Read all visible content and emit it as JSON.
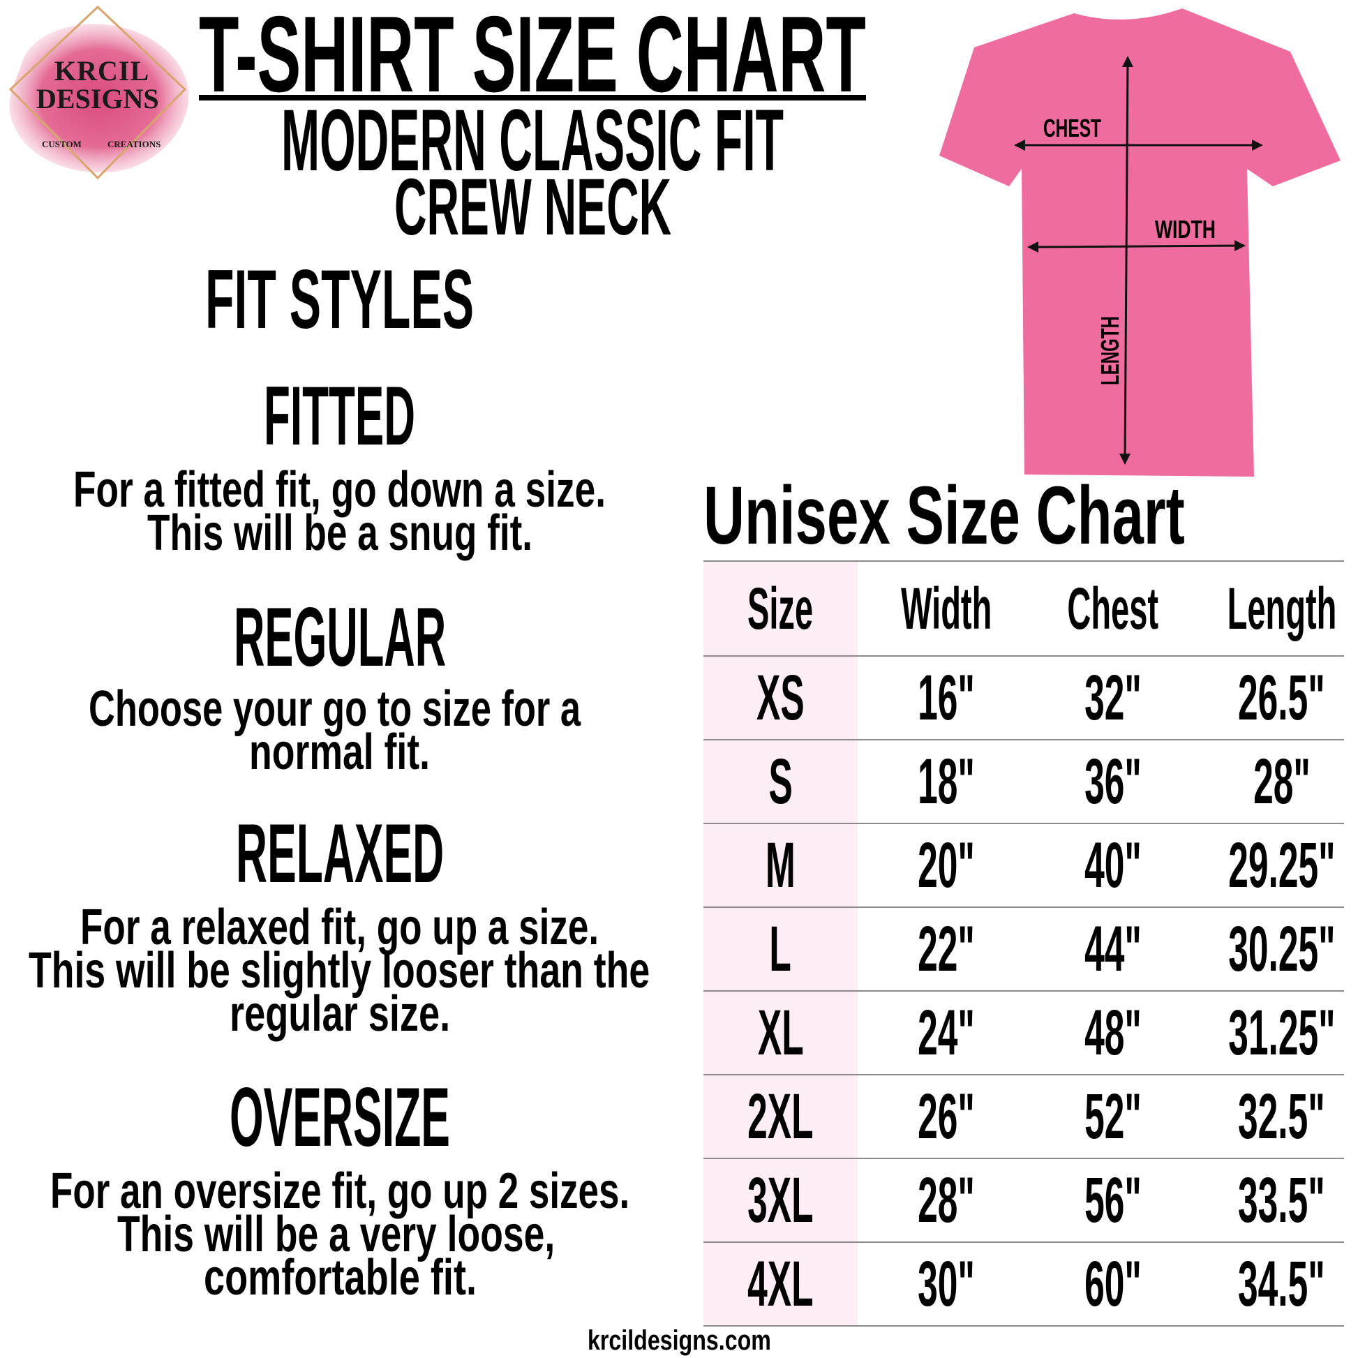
{
  "logo": {
    "line1": "KRCIL",
    "line2": "DESIGNS",
    "left_caption": "CUSTOM",
    "right_caption": "CREATIONS"
  },
  "header": {
    "title": "T-SHIRT  SIZE  CHART",
    "subtitle1": "MODERN CLASSIC FIT",
    "subtitle2": "CREW NECK"
  },
  "fit_styles": {
    "heading": "FIT  STYLES",
    "items": [
      {
        "name": "FITTED",
        "lines": [
          "For a fitted fit, go down a size.",
          "This will be a snug fit."
        ]
      },
      {
        "name": "REGULAR",
        "lines": [
          "Choose your go to size for a",
          "normal fit."
        ]
      },
      {
        "name": "RELAXED",
        "lines": [
          "For a relaxed fit, go up a size.",
          "This will be slightly looser than the",
          "regular size."
        ]
      },
      {
        "name": "OVERSIZE",
        "lines": [
          "For an oversize fit, go up 2 sizes.",
          "This will be a very loose,",
          "comfortable fit."
        ]
      }
    ]
  },
  "shirt": {
    "color": "#ef6c9f",
    "labels": {
      "chest": "CHEST",
      "width": "WIDTH",
      "length": "LENGTH"
    }
  },
  "size_chart": {
    "title": "Unisex Size Chart",
    "columns": [
      "Size",
      "Width",
      "Chest",
      "Length"
    ],
    "rows": [
      [
        "XS",
        "16\"",
        "32\"",
        "26.5\""
      ],
      [
        "S",
        "18\"",
        "36\"",
        "28\""
      ],
      [
        "M",
        "20\"",
        "40\"",
        "29.25\""
      ],
      [
        "L",
        "22\"",
        "44\"",
        "30.25\""
      ],
      [
        "XL",
        "24\"",
        "48\"",
        "31.25\""
      ],
      [
        "2XL",
        "26\"",
        "52\"",
        "32.5\""
      ],
      [
        "3XL",
        "28\"",
        "56\"",
        "33.5\""
      ],
      [
        "4XL",
        "30\"",
        "60\"",
        "34.5\""
      ]
    ],
    "size_column_color": "#fdeef6"
  },
  "footer": {
    "website": "krcildesigns.com"
  }
}
